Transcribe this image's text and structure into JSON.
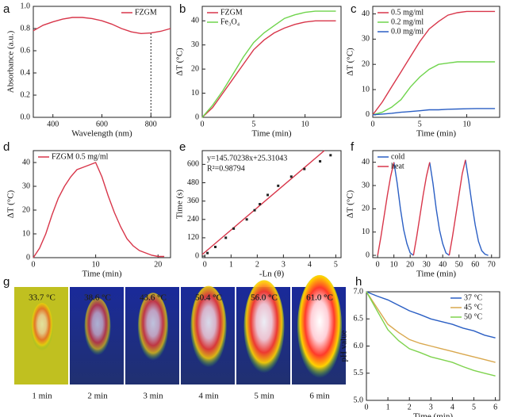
{
  "chart_data": [
    {
      "type": "line",
      "panel": "a",
      "xlabel": "Wavelength (nm)",
      "ylabel": "Absorbance (a.u.)",
      "xlim": [
        320,
        880
      ],
      "ylim": [
        0,
        1.0
      ],
      "xticks": [
        400,
        600,
        800
      ],
      "yticks": [
        {
          "value": 0,
          "label": "0.0"
        },
        0.2,
        0.4,
        0.6,
        0.8,
        {
          "value": 1,
          "label": "1.0"
        }
      ],
      "legend": "upper right",
      "vline": 800,
      "x": [
        320,
        360,
        400,
        440,
        480,
        520,
        560,
        600,
        640,
        680,
        720,
        760,
        800,
        840,
        880
      ],
      "series": [
        {
          "name": "FZGM",
          "color": "#d8364a",
          "values": [
            0.78,
            0.83,
            0.86,
            0.885,
            0.9,
            0.9,
            0.89,
            0.87,
            0.84,
            0.8,
            0.77,
            0.755,
            0.76,
            0.775,
            0.8
          ]
        }
      ]
    },
    {
      "type": "line",
      "panel": "b",
      "xlabel": "Time (min)",
      "ylabel": "ΔT (°C)",
      "xlim": [
        0,
        13.5
      ],
      "ylim": [
        0,
        46
      ],
      "xticks": [
        0,
        5,
        10
      ],
      "yticks": [
        0,
        10,
        20,
        30,
        40
      ],
      "legend": "upper left",
      "x": [
        0,
        1,
        2,
        3,
        4,
        5,
        6,
        7,
        8,
        9,
        10,
        11,
        12,
        13
      ],
      "series": [
        {
          "name": "FZGM",
          "color": "#d8364a",
          "values": [
            0,
            4,
            10,
            16,
            22,
            28,
            32,
            35,
            37,
            38.5,
            39.5,
            40,
            40,
            40
          ]
        },
        {
          "name": "Fe₃O₄",
          "color": "#6fd44c",
          "values": [
            0,
            5,
            11,
            18,
            25,
            31,
            35,
            38,
            41,
            42.5,
            43.5,
            44,
            44,
            44
          ]
        }
      ]
    },
    {
      "type": "line",
      "panel": "c",
      "xlabel": "Time (min)",
      "ylabel": "ΔT (°C)",
      "xlim": [
        0,
        13.5
      ],
      "ylim": [
        -1,
        43
      ],
      "xticks": [
        0,
        5,
        10
      ],
      "yticks": [
        0,
        10,
        20,
        30,
        40
      ],
      "legend": "upper left",
      "x": [
        0,
        1,
        2,
        3,
        4,
        5,
        6,
        7,
        8,
        9,
        10,
        11,
        12,
        13
      ],
      "series": [
        {
          "name": "0.5 mg/ml",
          "color": "#d8364a",
          "values": [
            0,
            5,
            11,
            17,
            23,
            29,
            34,
            37,
            39.5,
            40.5,
            41,
            41,
            41,
            41
          ]
        },
        {
          "name": "0.2 mg/ml",
          "color": "#6fd44c",
          "values": [
            0,
            1,
            3,
            6,
            11,
            15,
            18,
            20,
            20.5,
            21,
            21,
            21,
            21,
            21
          ]
        },
        {
          "name": "0.0 mg/ml",
          "color": "#2b5fc4",
          "values": [
            0,
            0.3,
            0.6,
            1,
            1.3,
            1.6,
            2,
            2,
            2.2,
            2.3,
            2.4,
            2.5,
            2.5,
            2.5
          ]
        }
      ]
    },
    {
      "type": "line",
      "panel": "d",
      "xlabel": "Time (min)",
      "ylabel": "ΔT (°C)",
      "xlim": [
        0,
        22
      ],
      "ylim": [
        0,
        45
      ],
      "xticks": [
        0,
        10,
        20
      ],
      "yticks": [
        0,
        10,
        20,
        30,
        40
      ],
      "legend": "upper left",
      "x": [
        0,
        1,
        2,
        3,
        4,
        5,
        6,
        7,
        8,
        9,
        10,
        11,
        12,
        13,
        14,
        15,
        16,
        17,
        18,
        19,
        20,
        21
      ],
      "series": [
        {
          "name": "FZGM 0.5 mg/ml",
          "color": "#d8364a",
          "values": [
            0,
            4,
            10,
            18,
            25,
            30,
            34,
            37,
            38,
            39,
            40,
            34,
            26,
            19,
            13,
            8,
            5,
            3,
            2,
            1,
            0.5,
            0.5
          ]
        }
      ]
    },
    {
      "type": "scatter",
      "panel": "e",
      "xlabel": "-Ln (θ)",
      "ylabel": "Time (s)",
      "xlim": [
        -0.1,
        5.2
      ],
      "ylim": [
        -10,
        690
      ],
      "xticks": [
        0,
        1,
        2,
        3,
        4,
        5
      ],
      "yticks": [
        0,
        120,
        240,
        360,
        480,
        600
      ],
      "annotations": [
        "y=145.70238x+25.31043",
        "R²=0.98794"
      ],
      "fit": {
        "slope": 145.70238,
        "intercept": 25.31043,
        "color": "#d8364a"
      },
      "color": "#222",
      "x": [
        0.1,
        0.4,
        0.8,
        1.1,
        1.6,
        1.9,
        2.1,
        2.4,
        2.8,
        3.3,
        3.8,
        4.4,
        4.8
      ],
      "values": [
        20,
        60,
        120,
        180,
        240,
        300,
        340,
        400,
        460,
        520,
        570,
        620,
        660
      ]
    },
    {
      "type": "line",
      "panel": "f",
      "xlabel": "Time (min)",
      "ylabel": "ΔT (°C)",
      "xlim": [
        -3,
        75
      ],
      "ylim": [
        -1,
        45
      ],
      "xticks": [
        0,
        10,
        20,
        30,
        40,
        50,
        60,
        70
      ],
      "yticks": [
        0,
        10,
        20,
        30,
        40
      ],
      "legend": "upper left",
      "x": [
        0,
        2,
        4,
        6,
        8,
        10,
        12,
        14,
        16,
        18,
        20,
        22,
        24,
        26,
        28,
        30,
        32,
        34,
        36,
        38,
        40,
        42,
        44,
        46,
        48,
        50,
        52,
        54,
        56,
        58,
        60,
        62,
        64,
        66,
        68
      ],
      "series": [
        {
          "name": "cold",
          "color": "#2b5fc4",
          "values": [
            null,
            null,
            null,
            null,
            null,
            40,
            31,
            20,
            11,
            5,
            1,
            0,
            null,
            null,
            null,
            null,
            40,
            31,
            20,
            11,
            5,
            1,
            0,
            null,
            null,
            null,
            null,
            41,
            32,
            22,
            13,
            6,
            2,
            0.5,
            0
          ]
        },
        {
          "name": "heat",
          "color": "#d8364a",
          "values": [
            0,
            8,
            17,
            26,
            34,
            40,
            null,
            null,
            null,
            null,
            null,
            0,
            8,
            17,
            26,
            34,
            40,
            null,
            null,
            null,
            null,
            null,
            0,
            8,
            17,
            26,
            35,
            41,
            null,
            null,
            null,
            null,
            null,
            null,
            null
          ]
        }
      ]
    },
    {
      "type": "thermal",
      "panel": "g",
      "categories": [
        "1 min",
        "2 min",
        "3 min",
        "4 min",
        "5 min",
        "6 min"
      ],
      "values": [
        33.7,
        38.6,
        43.6,
        50.4,
        56.0,
        61.0
      ],
      "value_labels": [
        "33.7 °C",
        "38.6 °C",
        "43.6 °C",
        "50.4 °C",
        "56.0 °C",
        "61.0 °C"
      ]
    },
    {
      "type": "line",
      "panel": "h",
      "xlabel": "Time (min)",
      "ylabel": "pH value",
      "xlim": [
        0,
        6.2
      ],
      "ylim": [
        5.0,
        7.0
      ],
      "xticks": [
        0,
        1,
        2,
        3,
        4,
        5,
        6
      ],
      "yticks": [
        {
          "value": 5,
          "label": "5.0"
        },
        5.5,
        {
          "value": 6,
          "label": "6.0"
        },
        6.5,
        {
          "value": 7,
          "label": "7.0"
        }
      ],
      "legend": "upper right",
      "x": [
        0,
        0.5,
        1,
        1.5,
        2,
        2.5,
        3,
        3.5,
        4,
        4.5,
        5,
        5.5,
        6
      ],
      "series": [
        {
          "name": "37 °C",
          "color": "#2b5fc4",
          "values": [
            7.0,
            6.92,
            6.85,
            6.75,
            6.65,
            6.58,
            6.5,
            6.45,
            6.4,
            6.33,
            6.28,
            6.2,
            6.15
          ]
        },
        {
          "name": "45 °C",
          "color": "#d9a84e",
          "values": [
            7.0,
            6.7,
            6.4,
            6.25,
            6.12,
            6.05,
            6.0,
            5.95,
            5.9,
            5.85,
            5.8,
            5.75,
            5.7
          ]
        },
        {
          "name": "50 °C",
          "color": "#7fd34e",
          "values": [
            7.0,
            6.65,
            6.3,
            6.1,
            5.95,
            5.88,
            5.8,
            5.75,
            5.7,
            5.62,
            5.55,
            5.5,
            5.45
          ]
        }
      ]
    }
  ]
}
